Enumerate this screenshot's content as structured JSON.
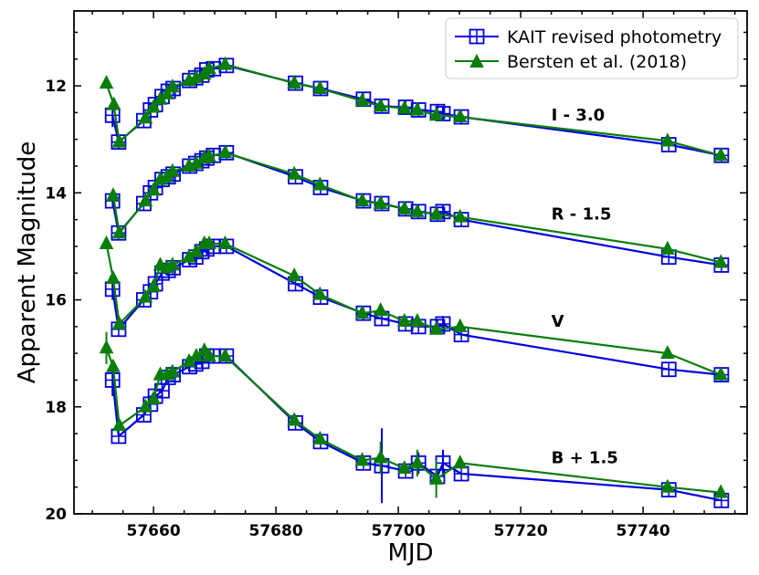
{
  "chart_data": {
    "type": "line",
    "title": "",
    "xlabel": "MJD",
    "ylabel": "Apparent Magnitude",
    "xlim": [
      57647,
      57757
    ],
    "ylim": [
      20,
      10.6
    ],
    "y_inverted": true,
    "xticks": [
      57660,
      57680,
      57700,
      57720,
      57740
    ],
    "yticks": [
      12,
      14,
      16,
      18,
      20
    ],
    "grid": false,
    "legend_position": "top-right",
    "colors": {
      "kait": "#0000dd",
      "bersten": "#0a7d0a"
    },
    "legend": [
      {
        "key": "kait",
        "label": "KAIT revised photometry",
        "marker": "square-plus"
      },
      {
        "key": "bersten",
        "label": "Bersten et al. (2018)",
        "marker": "triangle"
      }
    ],
    "band_labels": [
      {
        "text": "I - 3.0",
        "x": 57725,
        "y": 12.65
      },
      {
        "text": "R - 1.5",
        "x": 57725,
        "y": 14.5
      },
      {
        "text": "V",
        "x": 57725,
        "y": 16.5
      },
      {
        "text": "B + 1.5",
        "x": 57725,
        "y": 19.05
      }
    ],
    "series": [
      {
        "name": "KAIT revised photometry",
        "band": "I - 3.0",
        "key": "kait",
        "points": [
          [
            57653.3,
            12.55,
            0.22
          ],
          [
            57654.3,
            13.05,
            0
          ],
          [
            57658.4,
            12.65,
            0
          ],
          [
            57659.5,
            12.45,
            0
          ],
          [
            57660.3,
            12.35,
            0
          ],
          [
            57661.4,
            12.2,
            0
          ],
          [
            57662.4,
            12.1,
            0
          ],
          [
            57663.2,
            12.05,
            0
          ],
          [
            57665.9,
            11.9,
            0
          ],
          [
            57666.9,
            11.85,
            0
          ],
          [
            57667.9,
            11.8,
            0
          ],
          [
            57668.7,
            11.7,
            0.1
          ],
          [
            57669.8,
            11.68,
            0.12
          ],
          [
            57671.9,
            11.62,
            0
          ],
          [
            57683.2,
            11.95,
            0
          ],
          [
            57687.3,
            12.05,
            0
          ],
          [
            57694.3,
            12.25,
            0
          ],
          [
            57697.3,
            12.38,
            0
          ],
          [
            57701.2,
            12.4,
            0
          ],
          [
            57703.3,
            12.45,
            0
          ],
          [
            57706.4,
            12.48,
            0
          ],
          [
            57707.3,
            12.52,
            0.12
          ],
          [
            57710.3,
            12.58,
            0
          ],
          [
            57744.2,
            13.1,
            0
          ],
          [
            57752.8,
            13.3,
            0
          ]
        ]
      },
      {
        "name": "Bersten et al. (2018)",
        "band": "I - 3.0",
        "key": "bersten",
        "points": [
          [
            57652.3,
            11.95,
            0
          ],
          [
            57653.5,
            12.35,
            0
          ],
          [
            57654.4,
            13.05,
            0
          ],
          [
            57658.7,
            12.6,
            0
          ],
          [
            57660.0,
            12.4,
            0
          ],
          [
            57661.1,
            12.25,
            0
          ],
          [
            57662.2,
            12.15,
            0
          ],
          [
            57663.1,
            12.02,
            0
          ],
          [
            57665.8,
            11.9,
            0
          ],
          [
            57667.0,
            11.85,
            0
          ],
          [
            57668.3,
            11.78,
            0
          ],
          [
            57669.1,
            11.68,
            0
          ],
          [
            57671.7,
            11.6,
            0
          ],
          [
            57683.0,
            11.95,
            0
          ],
          [
            57687.2,
            12.05,
            0
          ],
          [
            57694.1,
            12.28,
            0
          ],
          [
            57697.1,
            12.38,
            0
          ],
          [
            57701.0,
            12.42,
            0
          ],
          [
            57703.1,
            12.45,
            0
          ],
          [
            57706.2,
            12.55,
            0
          ],
          [
            57710.1,
            12.58,
            0
          ],
          [
            57744.0,
            13.03,
            0
          ],
          [
            57752.7,
            13.3,
            0
          ]
        ]
      },
      {
        "name": "KAIT revised photometry",
        "band": "R - 1.5",
        "key": "kait",
        "points": [
          [
            57653.3,
            14.15,
            0
          ],
          [
            57654.3,
            14.75,
            0
          ],
          [
            57658.4,
            14.2,
            0
          ],
          [
            57659.5,
            14.0,
            0
          ],
          [
            57660.3,
            13.9,
            0
          ],
          [
            57661.4,
            13.75,
            0
          ],
          [
            57662.4,
            13.7,
            0
          ],
          [
            57663.2,
            13.65,
            0
          ],
          [
            57665.9,
            13.5,
            0
          ],
          [
            57666.9,
            13.45,
            0
          ],
          [
            57667.9,
            13.4,
            0
          ],
          [
            57668.7,
            13.35,
            0.1
          ],
          [
            57669.8,
            13.3,
            0.1
          ],
          [
            57671.9,
            13.25,
            0
          ],
          [
            57683.2,
            13.7,
            0
          ],
          [
            57687.3,
            13.9,
            0
          ],
          [
            57694.3,
            14.15,
            0
          ],
          [
            57697.3,
            14.2,
            0
          ],
          [
            57701.2,
            14.3,
            0
          ],
          [
            57703.3,
            14.35,
            0
          ],
          [
            57706.4,
            14.4,
            0
          ],
          [
            57707.3,
            14.35,
            0.12
          ],
          [
            57710.3,
            14.5,
            0
          ],
          [
            57744.2,
            15.2,
            0
          ],
          [
            57752.8,
            15.35,
            0
          ]
        ]
      },
      {
        "name": "Bersten et al. (2018)",
        "band": "R - 1.5",
        "key": "bersten",
        "points": [
          [
            57653.4,
            14.05,
            0
          ],
          [
            57654.4,
            14.75,
            0
          ],
          [
            57658.7,
            14.15,
            0
          ],
          [
            57660.0,
            13.95,
            0
          ],
          [
            57661.1,
            13.75,
            0
          ],
          [
            57662.2,
            13.7,
            0
          ],
          [
            57663.1,
            13.6,
            0
          ],
          [
            57665.8,
            13.5,
            0
          ],
          [
            57667.0,
            13.45,
            0
          ],
          [
            57668.3,
            13.35,
            0
          ],
          [
            57669.1,
            13.32,
            0
          ],
          [
            57671.7,
            13.25,
            0
          ],
          [
            57683.0,
            13.65,
            0
          ],
          [
            57687.2,
            13.85,
            0
          ],
          [
            57694.1,
            14.15,
            0
          ],
          [
            57697.1,
            14.2,
            0
          ],
          [
            57701.0,
            14.3,
            0
          ],
          [
            57703.1,
            14.35,
            0
          ],
          [
            57706.2,
            14.4,
            0
          ],
          [
            57710.1,
            14.45,
            0
          ],
          [
            57744.0,
            15.05,
            0
          ],
          [
            57752.7,
            15.3,
            0
          ]
        ]
      },
      {
        "name": "KAIT revised photometry",
        "band": "V",
        "key": "kait",
        "points": [
          [
            57653.3,
            15.8,
            0.2
          ],
          [
            57654.3,
            16.55,
            0
          ],
          [
            57658.4,
            16.0,
            0
          ],
          [
            57659.5,
            15.85,
            0
          ],
          [
            57660.3,
            15.7,
            0
          ],
          [
            57661.4,
            15.5,
            0
          ],
          [
            57662.4,
            15.45,
            0
          ],
          [
            57663.2,
            15.4,
            0
          ],
          [
            57665.9,
            15.25,
            0
          ],
          [
            57666.9,
            15.2,
            0
          ],
          [
            57667.9,
            15.1,
            0
          ],
          [
            57668.7,
            15.05,
            0.1
          ],
          [
            57669.8,
            15.0,
            0.1
          ],
          [
            57671.9,
            15.0,
            0
          ],
          [
            57683.2,
            15.7,
            0
          ],
          [
            57687.3,
            15.95,
            0
          ],
          [
            57694.3,
            16.25,
            0
          ],
          [
            57697.3,
            16.35,
            0
          ],
          [
            57701.2,
            16.45,
            0
          ],
          [
            57703.3,
            16.5,
            0
          ],
          [
            57706.4,
            16.5,
            0
          ],
          [
            57707.3,
            16.45,
            0.15
          ],
          [
            57710.3,
            16.65,
            0
          ],
          [
            57744.2,
            17.3,
            0
          ],
          [
            57752.8,
            17.4,
            0
          ]
        ]
      },
      {
        "name": "Bersten et al. (2018)",
        "band": "V",
        "key": "bersten",
        "points": [
          [
            57652.3,
            14.95,
            0
          ],
          [
            57653.4,
            15.6,
            0
          ],
          [
            57654.4,
            16.45,
            0
          ],
          [
            57658.7,
            15.95,
            0
          ],
          [
            57660.0,
            15.75,
            0
          ],
          [
            57661.1,
            15.35,
            0
          ],
          [
            57662.2,
            15.4,
            0
          ],
          [
            57663.1,
            15.35,
            0
          ],
          [
            57665.8,
            15.2,
            0
          ],
          [
            57667.0,
            15.1,
            0
          ],
          [
            57668.3,
            14.95,
            0
          ],
          [
            57669.1,
            14.95,
            0
          ],
          [
            57671.7,
            14.95,
            0
          ],
          [
            57683.0,
            15.55,
            0
          ],
          [
            57687.2,
            15.9,
            0
          ],
          [
            57694.1,
            16.25,
            0
          ],
          [
            57697.1,
            16.2,
            0
          ],
          [
            57701.0,
            16.4,
            0
          ],
          [
            57703.1,
            16.4,
            0
          ],
          [
            57706.2,
            16.55,
            0
          ],
          [
            57710.1,
            16.5,
            0
          ],
          [
            57744.0,
            17.0,
            0
          ],
          [
            57752.7,
            17.4,
            0
          ]
        ]
      },
      {
        "name": "KAIT revised photometry",
        "band": "B + 1.5",
        "key": "kait",
        "points": [
          [
            57653.3,
            17.5,
            0.3
          ],
          [
            57654.3,
            18.55,
            0
          ],
          [
            57658.4,
            18.15,
            0
          ],
          [
            57659.5,
            17.95,
            0
          ],
          [
            57660.3,
            17.8,
            0
          ],
          [
            57661.4,
            17.7,
            0
          ],
          [
            57662.4,
            17.45,
            0
          ],
          [
            57663.2,
            17.4,
            0
          ],
          [
            57665.9,
            17.25,
            0
          ],
          [
            57666.9,
            17.2,
            0
          ],
          [
            57667.9,
            17.15,
            0
          ],
          [
            57668.7,
            17.05,
            0.1
          ],
          [
            57669.8,
            17.05,
            0.1
          ],
          [
            57671.9,
            17.05,
            0
          ],
          [
            57683.2,
            18.3,
            0
          ],
          [
            57687.3,
            18.65,
            0
          ],
          [
            57694.3,
            19.05,
            0
          ],
          [
            57697.3,
            19.1,
            0.7
          ],
          [
            57701.2,
            19.2,
            0
          ],
          [
            57703.3,
            19.05,
            0.2
          ],
          [
            57706.4,
            19.3,
            0
          ],
          [
            57707.3,
            19.05,
            0.25
          ],
          [
            57710.3,
            19.25,
            0
          ],
          [
            57744.2,
            19.55,
            0
          ],
          [
            57752.8,
            19.75,
            0
          ]
        ]
      },
      {
        "name": "Bersten et al. (2018)",
        "band": "B + 1.5",
        "key": "bersten",
        "points": [
          [
            57652.3,
            16.9,
            0.3
          ],
          [
            57653.4,
            17.25,
            0
          ],
          [
            57654.4,
            18.35,
            0
          ],
          [
            57658.7,
            18.0,
            0
          ],
          [
            57660.0,
            17.85,
            0
          ],
          [
            57661.1,
            17.4,
            0
          ],
          [
            57662.2,
            17.4,
            0
          ],
          [
            57663.1,
            17.35,
            0
          ],
          [
            57665.8,
            17.15,
            0
          ],
          [
            57667.0,
            17.05,
            0
          ],
          [
            57668.3,
            16.95,
            0
          ],
          [
            57669.1,
            17.05,
            0
          ],
          [
            57671.7,
            17.05,
            0
          ],
          [
            57683.0,
            18.25,
            0
          ],
          [
            57687.2,
            18.6,
            0
          ],
          [
            57694.1,
            19.0,
            0
          ],
          [
            57697.1,
            18.95,
            0.3
          ],
          [
            57701.0,
            19.15,
            0
          ],
          [
            57703.1,
            19.05,
            0.25
          ],
          [
            57706.2,
            19.35,
            0.35
          ],
          [
            57710.1,
            19.05,
            0
          ],
          [
            57744.0,
            19.5,
            0
          ],
          [
            57752.7,
            19.6,
            0
          ]
        ]
      }
    ]
  }
}
